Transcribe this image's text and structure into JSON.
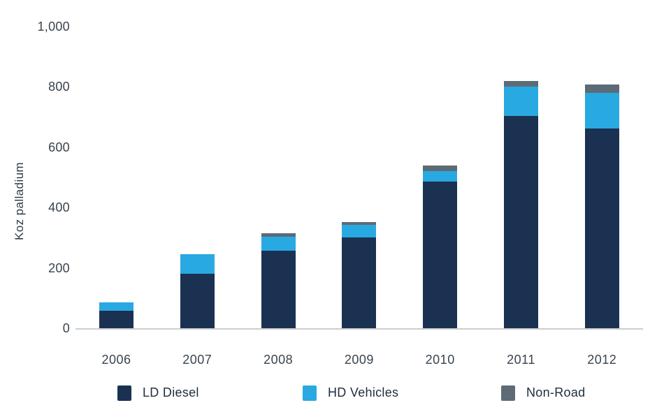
{
  "chart_data": {
    "type": "bar",
    "stacked": true,
    "title": "",
    "xlabel": "",
    "ylabel": "Koz palladium",
    "ylim": [
      0,
      1000
    ],
    "yticks": [
      0,
      200,
      400,
      600,
      800,
      1000
    ],
    "ytick_labels": [
      "0",
      "200",
      "400",
      "600",
      "800",
      "1,000"
    ],
    "grid": false,
    "legend_position": "bottom",
    "categories": [
      "2006",
      "2007",
      "2008",
      "2009",
      "2010",
      "2011",
      "2012"
    ],
    "series": [
      {
        "name": "LD Diesel",
        "color": "#1a3152",
        "values": [
          57,
          180,
          258,
          300,
          486,
          704,
          663
        ]
      },
      {
        "name": "HD Vehicles",
        "color": "#29a9e1",
        "values": [
          28,
          65,
          45,
          42,
          36,
          98,
          118
        ]
      },
      {
        "name": "Non-Road",
        "color": "#5d6b77",
        "values": [
          0,
          0,
          12,
          11,
          18,
          18,
          27
        ]
      }
    ],
    "totals": [
      85,
      245,
      315,
      353,
      540,
      820,
      808
    ]
  },
  "colors": {
    "axis_line": "#c9cdd2",
    "tick_text": "#39444e",
    "legend_text": "#1e2d3d",
    "background": "#ffffff"
  }
}
